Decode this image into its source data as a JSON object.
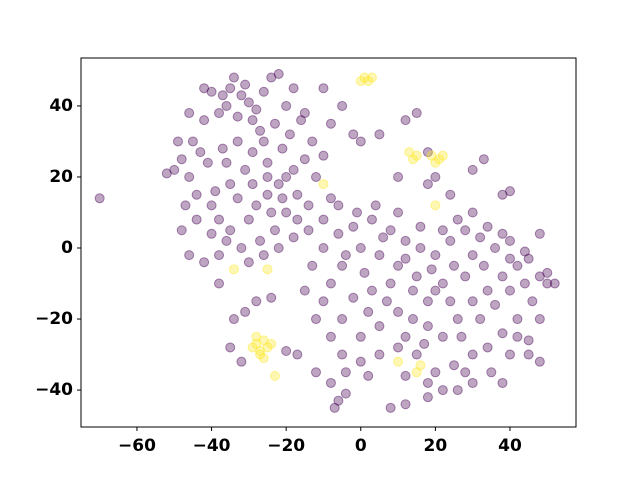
{
  "chart_data": {
    "type": "scatter",
    "xlim": [
      -75,
      57.7
    ],
    "ylim": [
      -50.4,
      53.5
    ],
    "xticks": [
      {
        "value": -60,
        "label": "−60"
      },
      {
        "value": -40,
        "label": "−40"
      },
      {
        "value": -20,
        "label": "−20"
      },
      0,
      20,
      40
    ],
    "yticks": [
      {
        "value": -40,
        "label": "−40"
      },
      {
        "value": -20,
        "label": "−20"
      },
      0,
      20,
      40
    ],
    "series": [
      {
        "color": "#440154",
        "x": [
          -35,
          -32,
          -30,
          -36,
          -38,
          -33,
          -28,
          -26,
          -24,
          -40,
          -42,
          -45,
          -48,
          -50,
          -46,
          -44,
          -40,
          -38,
          -35,
          -30,
          -28,
          -25,
          -22,
          -20,
          -18,
          -15,
          -17,
          -20,
          -23,
          -27,
          -32,
          -36,
          -40,
          -44,
          -47,
          -41,
          -37,
          -33,
          -29,
          -25,
          -21,
          -19,
          -23,
          -27,
          -31,
          -35,
          -39,
          -33,
          -29,
          -25,
          -21,
          -17,
          -14,
          -12,
          -10,
          -13,
          -16,
          -20,
          -18,
          -22,
          -42,
          -46,
          -49,
          -52,
          -48,
          -46,
          -42,
          -38,
          -30,
          -26,
          -22,
          -18,
          -14,
          -10,
          -8,
          -34,
          -31,
          -37,
          -29,
          -43,
          -24,
          -36,
          -26,
          20,
          18,
          22,
          15,
          10,
          5,
          0,
          -5,
          -8,
          -10,
          -5,
          0,
          5,
          10,
          14,
          18,
          22,
          26,
          30,
          34,
          38,
          42,
          45,
          48,
          50,
          46,
          42,
          38,
          34,
          30,
          25,
          20,
          15,
          10,
          5,
          0,
          -5,
          -8,
          -12,
          -15,
          -13,
          -10,
          -6,
          -2,
          3,
          8,
          12,
          16,
          20,
          24,
          28,
          32,
          36,
          40,
          44,
          28,
          25,
          14,
          8,
          3,
          -2,
          2,
          7,
          12,
          17,
          27,
          32,
          36,
          40,
          44,
          33,
          24,
          19,
          12,
          6,
          1,
          -4,
          26,
          30,
          34,
          38,
          22,
          16,
          10,
          4,
          -1,
          -6,
          28,
          35,
          40,
          45,
          48,
          22,
          18,
          12,
          2,
          -4,
          -8,
          -70,
          -6,
          -4,
          -7,
          8,
          12,
          18,
          26,
          30,
          38,
          48,
          52,
          50,
          40,
          38,
          33,
          30,
          24,
          20,
          18,
          10,
          12,
          15,
          5,
          -2,
          0,
          -5,
          -10,
          -15,
          -8,
          18,
          -17,
          -20,
          -28,
          -24,
          -31,
          -34,
          -38,
          -32,
          -35,
          -12,
          30,
          42,
          45,
          48,
          40
        ],
        "y": [
          45,
          43,
          41,
          40,
          38,
          37,
          39,
          44,
          48,
          44,
          36,
          30,
          25,
          22,
          20,
          15,
          12,
          8,
          5,
          8,
          12,
          15,
          18,
          20,
          22,
          25,
          15,
          10,
          5,
          2,
          0,
          2,
          4,
          8,
          12,
          24,
          28,
          30,
          27,
          24,
          28,
          32,
          35,
          33,
          22,
          18,
          16,
          14,
          18,
          20,
          14,
          8,
          12,
          20,
          26,
          30,
          36,
          40,
          45,
          49,
          45,
          38,
          30,
          21,
          5,
          -2,
          -4,
          -2,
          -4,
          -2,
          0,
          3,
          5,
          8,
          14,
          48,
          46,
          43,
          36,
          27,
          10,
          24,
          30,
          -12,
          -15,
          -10,
          -8,
          -5,
          -2,
          0,
          -5,
          -10,
          -15,
          -20,
          -25,
          -22,
          -18,
          -20,
          -22,
          -25,
          -20,
          -15,
          -12,
          -8,
          -5,
          -3,
          -8,
          -10,
          -15,
          -20,
          -24,
          -28,
          -30,
          -33,
          -35,
          -30,
          -28,
          -30,
          -32,
          -30,
          -25,
          -20,
          -12,
          -5,
          0,
          4,
          6,
          8,
          5,
          2,
          0,
          -2,
          2,
          5,
          3,
          0,
          2,
          -1,
          -8,
          -5,
          -12,
          -10,
          -12,
          -14,
          -18,
          -15,
          -25,
          -27,
          -25,
          -20,
          -16,
          -12,
          -10,
          -5,
          -15,
          -6,
          -3,
          3,
          -7,
          -2,
          8,
          10,
          6,
          4,
          5,
          6,
          10,
          12,
          10,
          12,
          -35,
          -35,
          -30,
          -26,
          -20,
          -40,
          -38,
          -36,
          -36,
          -35,
          -38,
          14,
          -43,
          -41,
          -45,
          -45,
          -44,
          -42,
          -40,
          -38,
          -38,
          -32,
          -10,
          -7,
          16,
          15,
          25,
          22,
          15,
          20,
          27,
          20,
          36,
          38,
          32,
          32,
          30,
          40,
          45,
          38,
          35,
          18,
          -30,
          -29,
          -15,
          -14,
          -18,
          -20,
          -10,
          -32,
          -28,
          -35,
          -2,
          -25,
          -30,
          4,
          -3
        ]
      },
      {
        "color": "#fde725",
        "x": [
          1,
          2,
          3,
          0,
          13,
          14,
          15,
          19,
          21,
          22,
          20,
          -28,
          -27,
          -26,
          -28,
          -25,
          -27,
          -24,
          -29,
          -26,
          -25,
          -34,
          15,
          16,
          10,
          -10,
          20,
          -23
        ],
        "y": [
          48,
          47,
          48,
          47,
          27,
          25,
          26,
          26,
          25,
          26,
          24,
          -27,
          -29,
          -26,
          -25,
          -28,
          -30,
          -27,
          -28,
          -31,
          -6,
          -6,
          -35,
          -33,
          -32,
          18,
          12,
          -36
        ]
      }
    ]
  }
}
